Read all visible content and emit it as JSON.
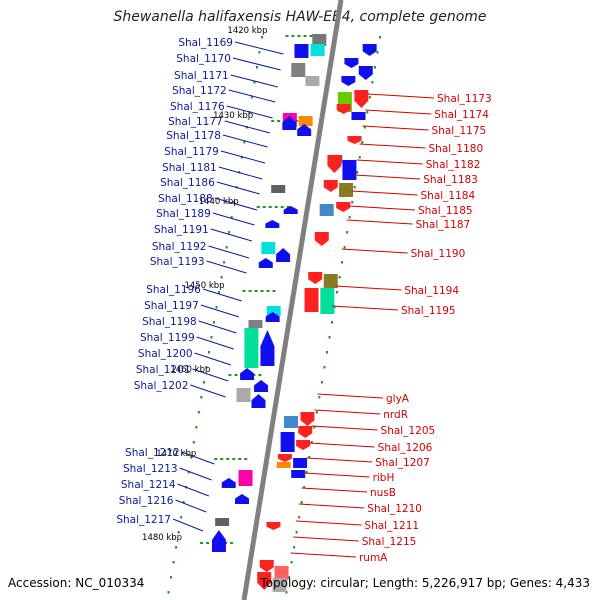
{
  "title": "Shewanella halifaxensis HAW-EB4, complete genome",
  "accession": "Accession: NC_010334",
  "topology": "Topology: circular; Length: 5,226,917 bp; Genes: 4,433",
  "colors": {
    "left_label": "#0a1a9c",
    "right_label": "#d40000",
    "backbone": "#808080",
    "tick": "#1a9a1a"
  },
  "scale_labels": [
    "1420 kbp",
    "1430 kbp",
    "1440 kbp",
    "1450 kbp",
    "1460 kbp",
    "1470 kbp",
    "1480 kbp"
  ],
  "left_genes": [
    "Shal_1169",
    "Shal_1170",
    "Shal_1171",
    "Shal_1172",
    "Shal_1176",
    "Shal_1177",
    "Shal_1178",
    "Shal_1179",
    "Shal_1181",
    "Shal_1186",
    "Shal_1188",
    "Shal_1189",
    "Shal_1191",
    "Shal_1192",
    "Shal_1193",
    "Shal_1196",
    "Shal_1197",
    "Shal_1198",
    "Shal_1199",
    "Shal_1200",
    "Shal_1201",
    "Shal_1202",
    "Shal_1212",
    "Shal_1213",
    "Shal_1214",
    "Shal_1216",
    "Shal_1217"
  ],
  "right_genes": [
    "Shal_1173",
    "Shal_1174",
    "Shal_1175",
    "Shal_1180",
    "Shal_1182",
    "Shal_1183",
    "Shal_1184",
    "Shal_1185",
    "Shal_1187",
    "Shal_1190",
    "Shal_1194",
    "Shal_1195",
    "glyA",
    "nrdR",
    "Shal_1205",
    "Shal_1206",
    "Shal_1207",
    "ribH",
    "nusB",
    "Shal_1210",
    "Shal_1211",
    "Shal_1215",
    "rumA"
  ]
}
